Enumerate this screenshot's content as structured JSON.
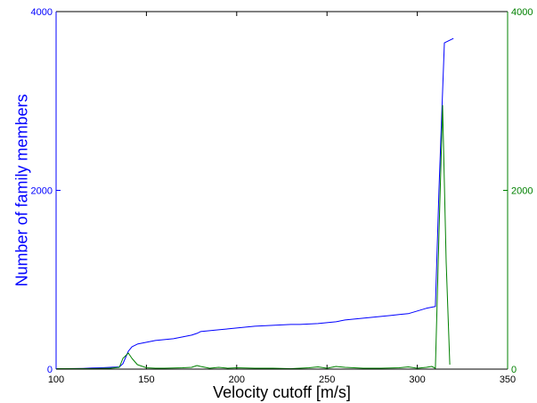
{
  "chart_data": {
    "type": "line",
    "title": "",
    "xlabel": "Velocity cutoff [m/s]",
    "ylabel_left": "Number of family members",
    "ylabel_right": "",
    "xlim": [
      100,
      350
    ],
    "ylim_left": [
      0,
      4000
    ],
    "ylim_right": [
      0,
      4000
    ],
    "x_ticks": [
      100,
      150,
      200,
      250,
      300,
      350
    ],
    "y_ticks_left": [
      0,
      2000,
      4000
    ],
    "y_ticks_right": [
      0,
      2000,
      4000
    ],
    "grid": false,
    "colors": {
      "left_axis": "#0000ff",
      "right_axis": "#008000",
      "x_axis": "#000000"
    },
    "series": [
      {
        "axis": "left",
        "color": "#0000ff",
        "x": [
          100,
          105,
          110,
          115,
          120,
          125,
          130,
          135,
          137,
          140,
          142,
          145,
          150,
          155,
          160,
          165,
          170,
          175,
          178,
          180,
          185,
          190,
          195,
          200,
          205,
          210,
          215,
          220,
          225,
          230,
          235,
          240,
          245,
          250,
          255,
          260,
          265,
          270,
          275,
          280,
          285,
          290,
          295,
          300,
          305,
          310,
          312,
          315,
          320
        ],
        "values": [
          5,
          5,
          6,
          8,
          12,
          15,
          20,
          25,
          60,
          200,
          250,
          280,
          300,
          320,
          330,
          340,
          360,
          380,
          400,
          420,
          430,
          440,
          450,
          460,
          470,
          480,
          485,
          490,
          495,
          500,
          500,
          505,
          510,
          520,
          530,
          550,
          560,
          570,
          580,
          590,
          600,
          610,
          620,
          650,
          680,
          700,
          2000,
          3650,
          3700
        ]
      },
      {
        "axis": "right",
        "color": "#008000",
        "x": [
          100,
          110,
          120,
          130,
          135,
          137,
          140,
          142,
          145,
          150,
          155,
          160,
          170,
          175,
          178,
          180,
          185,
          190,
          195,
          200,
          210,
          220,
          230,
          240,
          245,
          250,
          255,
          260,
          270,
          280,
          290,
          295,
          300,
          305,
          308,
          310,
          312,
          314,
          316,
          318
        ],
        "values": [
          5,
          5,
          5,
          10,
          20,
          120,
          180,
          120,
          50,
          15,
          10,
          10,
          15,
          20,
          40,
          30,
          10,
          20,
          10,
          15,
          10,
          10,
          5,
          15,
          25,
          10,
          30,
          20,
          10,
          10,
          15,
          25,
          10,
          20,
          30,
          10,
          1500,
          2950,
          1200,
          50
        ]
      }
    ]
  }
}
